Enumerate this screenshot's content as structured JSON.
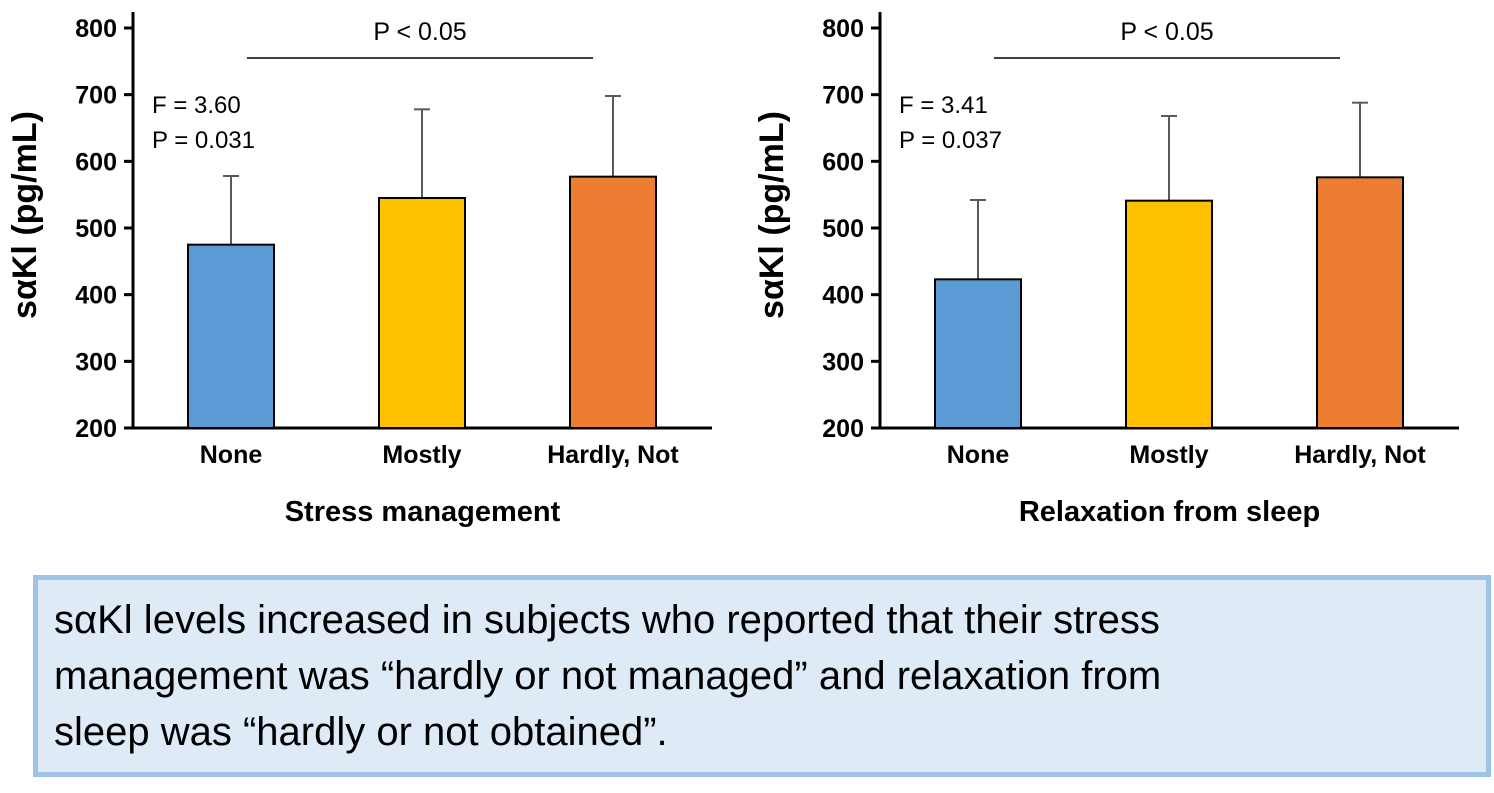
{
  "colors": {
    "background": "#ffffff",
    "bar_fill": [
      "#5b9bd5",
      "#ffc000",
      "#ed7d31"
    ],
    "bar_border": "#000000",
    "error_bar": "#595959",
    "axis": "#000000",
    "text": "#000000",
    "caption_fill": "#deeaf6",
    "caption_border": "#9dc3e6"
  },
  "chart_data": [
    {
      "type": "bar",
      "title": "",
      "xlabel": "Stress management",
      "ylabel": "sαKl (pg/mL)",
      "categories": [
        "None",
        "Mostly",
        "Hardly, Not"
      ],
      "values": [
        475,
        545,
        577
      ],
      "error_top": [
        578,
        678,
        698
      ],
      "ylim": [
        200,
        800
      ],
      "yticks": [
        200,
        300,
        400,
        500,
        600,
        700,
        800
      ],
      "grid": false,
      "legend": "none",
      "annotations": [
        "F = 3.60",
        "P = 0.031"
      ],
      "significance": {
        "label": "P < 0.05",
        "from_category": "None",
        "to_category": "Hardly, Not"
      }
    },
    {
      "type": "bar",
      "title": "",
      "xlabel": "Relaxation from sleep",
      "ylabel": "sαKl (pg/mL)",
      "categories": [
        "None",
        "Mostly",
        "Hardly, Not"
      ],
      "values": [
        423,
        541,
        576
      ],
      "error_top": [
        542,
        668,
        688
      ],
      "ylim": [
        200,
        800
      ],
      "yticks": [
        200,
        300,
        400,
        500,
        600,
        700,
        800
      ],
      "grid": false,
      "legend": "none",
      "annotations": [
        "F = 3.41",
        "P = 0.037"
      ],
      "significance": {
        "label": "P < 0.05",
        "from_category": "None",
        "to_category": "Hardly, Not"
      }
    }
  ],
  "caption": {
    "lines": [
      "sαKl levels increased in subjects who reported that their stress",
      "management was “hardly or not managed” and relaxation from",
      "sleep was “hardly or not obtained”."
    ],
    "text": "sαKl levels increased in subjects who reported that their stress management was “hardly or not managed” and relaxation from sleep was “hardly or not obtained”."
  }
}
